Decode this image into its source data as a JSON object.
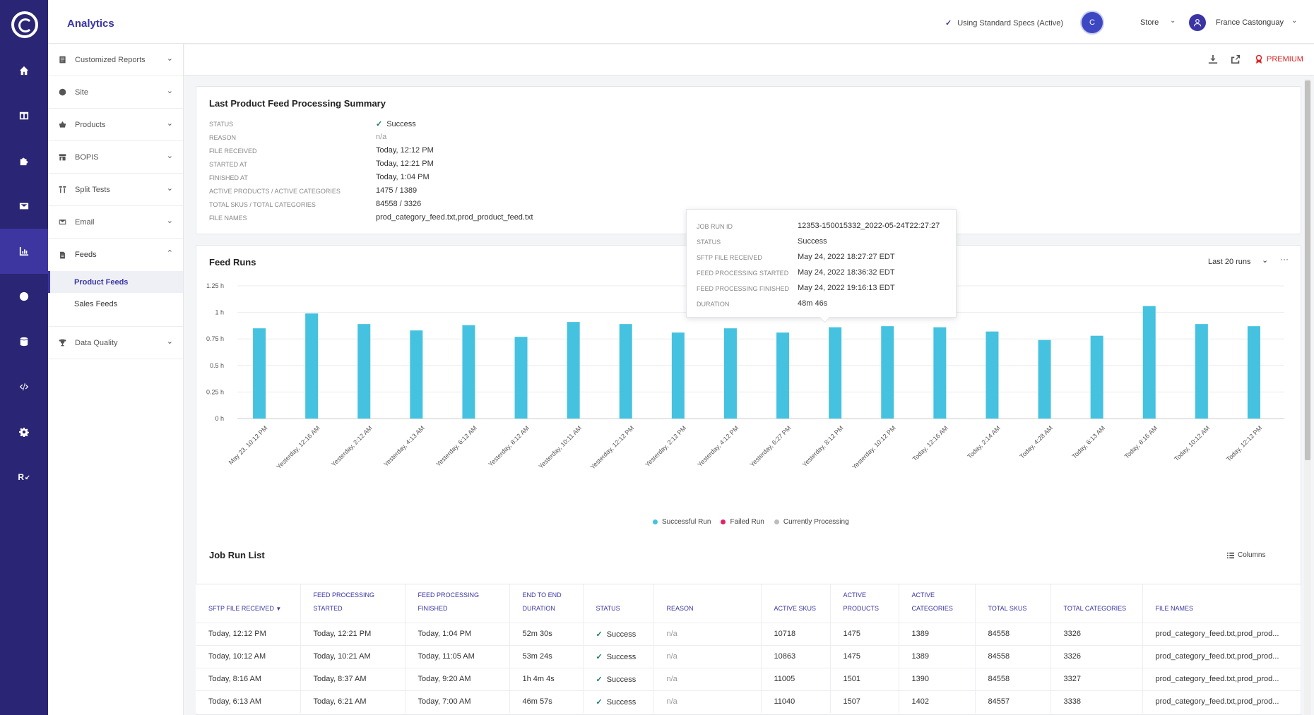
{
  "app": {
    "title": "Analytics"
  },
  "header": {
    "specs_label": "Using Standard Specs (Active)",
    "avatar_letter": "C",
    "store_label": "Store",
    "user_name": "France Castonguay"
  },
  "rail": {
    "items": [
      "home-icon",
      "dashboard-icon",
      "puzzle-icon",
      "mail-icon",
      "chart-icon",
      "globe-icon",
      "database-icon",
      "code-icon",
      "gear-icon"
    ],
    "bottom_label": "R"
  },
  "sidebar": {
    "items": [
      {
        "label": "Customized Reports"
      },
      {
        "label": "Site"
      },
      {
        "label": "Products"
      },
      {
        "label": "BOPIS"
      },
      {
        "label": "Split Tests"
      },
      {
        "label": "Email"
      },
      {
        "label": "Feeds"
      },
      {
        "label": "Data Quality"
      }
    ],
    "feeds_sub": [
      {
        "label": "Product Feeds"
      },
      {
        "label": "Sales Feeds"
      }
    ]
  },
  "toolbar": {
    "premium_label": "PREMIUM"
  },
  "summary": {
    "title": "Last Product Feed Processing Summary",
    "rows": [
      {
        "label": "STATUS",
        "value": "Success"
      },
      {
        "label": "REASON",
        "value": "n/a"
      },
      {
        "label": "FILE RECEIVED",
        "value": "Today, 12:12 PM"
      },
      {
        "label": "STARTED AT",
        "value": "Today, 12:21 PM"
      },
      {
        "label": "FINISHED AT",
        "value": "Today, 1:04 PM"
      },
      {
        "label": "ACTIVE PRODUCTS / ACTIVE CATEGORIES",
        "value": "1475 / 1389"
      },
      {
        "label": "TOTAL SKUS / TOTAL CATEGORIES",
        "value": "84558 / 3326"
      },
      {
        "label": "FILE NAMES",
        "value": "prod_category_feed.txt,prod_product_feed.txt"
      }
    ]
  },
  "tooltip": {
    "rows": [
      {
        "label": "JOB RUN ID",
        "value": "12353-150015332_2022-05-24T22:27:27"
      },
      {
        "label": "STATUS",
        "value": "Success"
      },
      {
        "label": "SFTP FILE RECEIVED",
        "value": "May 24, 2022 18:27:27 EDT"
      },
      {
        "label": "FEED PROCESSING STARTED",
        "value": "May 24, 2022 18:36:32 EDT"
      },
      {
        "label": "FEED PROCESSING FINISHED",
        "value": "May 24, 2022 19:16:13 EDT"
      },
      {
        "label": "DURATION",
        "value": "48m 46s"
      }
    ]
  },
  "feed_runs": {
    "title": "Feed Runs",
    "range_label": "Last 20 runs"
  },
  "chart_data": {
    "type": "bar",
    "title": "Feed Runs",
    "categories": [
      "May 23, 10:12 PM",
      "Yesterday, 12:16 AM",
      "Yesterday, 2:12 AM",
      "Yesterday, 4:13 AM",
      "Yesterday, 6:12 AM",
      "Yesterday, 8:12 AM",
      "Yesterday, 10:11 AM",
      "Yesterday, 12:12 PM",
      "Yesterday, 2:12 PM",
      "Yesterday, 4:12 PM",
      "Yesterday, 6:27 PM",
      "Yesterday, 8:12 PM",
      "Yesterday, 10:12 PM",
      "Today, 12:16 AM",
      "Today, 2:14 AM",
      "Today, 4:28 AM",
      "Today, 6:13 AM",
      "Today, 8:16 AM",
      "Today, 10:12 AM",
      "Today, 12:12 PM"
    ],
    "values": [
      0.85,
      0.99,
      0.89,
      0.83,
      0.88,
      0.77,
      0.91,
      0.89,
      0.81,
      0.85,
      0.81,
      0.86,
      0.87,
      0.86,
      0.82,
      0.74,
      0.78,
      1.06,
      0.89,
      0.87
    ],
    "yticks": [
      "0 h",
      "0.25 h",
      "0.5 h",
      "0.75 h",
      "1 h",
      "1.25 h"
    ],
    "ylim": [
      0,
      1.25
    ],
    "color": "#45c2e0",
    "legend": [
      {
        "name": "Successful Run",
        "color": "#45c2e0"
      },
      {
        "name": "Failed Run",
        "color": "#e0246b"
      },
      {
        "name": "Currently Processing",
        "color": "#bdbdbd"
      }
    ]
  },
  "job_list": {
    "title": "Job Run List",
    "columns_label": "Columns",
    "headers": [
      "SFTP FILE RECEIVED",
      "FEED PROCESSING STARTED",
      "FEED PROCESSING FINISHED",
      "END TO END DURATION",
      "STATUS",
      "REASON",
      "ACTIVE SKUS",
      "ACTIVE PRODUCTS",
      "ACTIVE CATEGORIES",
      "TOTAL SKUS",
      "TOTAL CATEGORIES",
      "FILE NAMES"
    ],
    "rows": [
      [
        "Today, 12:12 PM",
        "Today, 12:21 PM",
        "Today, 1:04 PM",
        "52m 30s",
        "Success",
        "n/a",
        "10718",
        "1475",
        "1389",
        "84558",
        "3326",
        "prod_category_feed.txt,prod_prod..."
      ],
      [
        "Today, 10:12 AM",
        "Today, 10:21 AM",
        "Today, 11:05 AM",
        "53m 24s",
        "Success",
        "n/a",
        "10863",
        "1475",
        "1389",
        "84558",
        "3326",
        "prod_category_feed.txt,prod_prod..."
      ],
      [
        "Today, 8:16 AM",
        "Today, 8:37 AM",
        "Today, 9:20 AM",
        "1h 4m 4s",
        "Success",
        "n/a",
        "11005",
        "1501",
        "1390",
        "84558",
        "3327",
        "prod_category_feed.txt,prod_prod..."
      ],
      [
        "Today, 6:13 AM",
        "Today, 6:21 AM",
        "Today, 7:00 AM",
        "46m 57s",
        "Success",
        "n/a",
        "11040",
        "1507",
        "1402",
        "84557",
        "3338",
        "prod_category_feed.txt,prod_prod..."
      ]
    ]
  }
}
